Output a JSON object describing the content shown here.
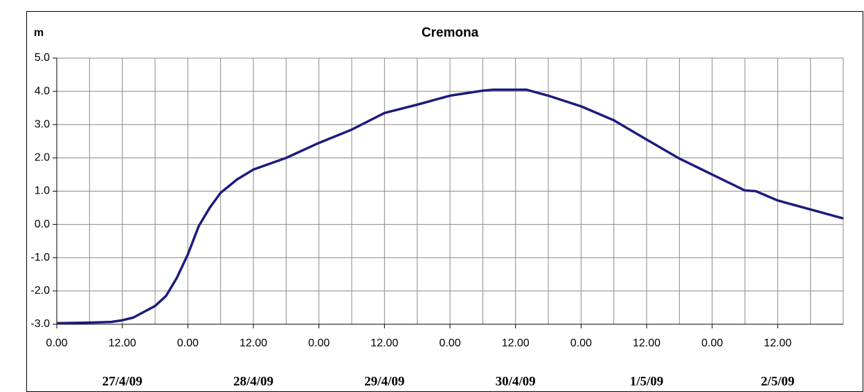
{
  "chart_data": {
    "type": "line",
    "title": "Cremona",
    "y_label": "m",
    "x": [
      0,
      6,
      10,
      12,
      14,
      18,
      20,
      22,
      24,
      26,
      28,
      30,
      33,
      36,
      42,
      48,
      54,
      60,
      66,
      72,
      78,
      80,
      86,
      90,
      96,
      102,
      108,
      114,
      120,
      126,
      128,
      132,
      138,
      144
    ],
    "series": [
      {
        "name": "Cremona",
        "color": "#1c1c7c",
        "values": [
          -2.97,
          -2.95,
          -2.93,
          -2.88,
          -2.8,
          -2.45,
          -2.15,
          -1.6,
          -0.9,
          -0.05,
          0.5,
          0.95,
          1.35,
          1.65,
          2.0,
          2.45,
          2.85,
          3.35,
          3.6,
          3.87,
          4.02,
          4.05,
          4.05,
          3.87,
          3.55,
          3.13,
          2.55,
          1.98,
          1.5,
          1.02,
          1.0,
          0.72,
          0.45,
          0.18
        ]
      }
    ],
    "xlim": [
      0,
      144
    ],
    "xticks": [
      {
        "value": 0,
        "label": "0.00"
      },
      {
        "value": 12,
        "label": "12.00"
      },
      {
        "value": 24,
        "label": "0.00"
      },
      {
        "value": 36,
        "label": "12.00"
      },
      {
        "value": 48,
        "label": "0.00"
      },
      {
        "value": 60,
        "label": "12.00"
      },
      {
        "value": 72,
        "label": "0.00"
      },
      {
        "value": 84,
        "label": "12.00"
      },
      {
        "value": 96,
        "label": "0.00"
      },
      {
        "value": 108,
        "label": "12.00"
      },
      {
        "value": 120,
        "label": "0.00"
      },
      {
        "value": 132,
        "label": "12.00"
      }
    ],
    "xgrid": [
      6,
      18,
      30,
      42,
      54,
      66,
      78,
      90,
      102,
      114,
      126,
      138,
      144
    ],
    "day_ticks": [
      {
        "value": 12,
        "label": "27/4/09"
      },
      {
        "value": 36,
        "label": "28/4/09"
      },
      {
        "value": 60,
        "label": "29/4/09"
      },
      {
        "value": 84,
        "label": "30/4/09"
      },
      {
        "value": 108,
        "label": "1/5/09"
      },
      {
        "value": 132,
        "label": "2/5/09"
      }
    ],
    "ylim": [
      -3,
      5
    ],
    "yticks": [
      {
        "value": -3,
        "label": "-3.0"
      },
      {
        "value": -2,
        "label": "-2.0"
      },
      {
        "value": -1,
        "label": "-1.0"
      },
      {
        "value": 0,
        "label": "0.0"
      },
      {
        "value": 1,
        "label": "1.0"
      },
      {
        "value": 2,
        "label": "2.0"
      },
      {
        "value": 3,
        "label": "3.0"
      },
      {
        "value": 4,
        "label": "4.0"
      },
      {
        "value": 5,
        "label": "5.0"
      }
    ],
    "grid": true
  }
}
